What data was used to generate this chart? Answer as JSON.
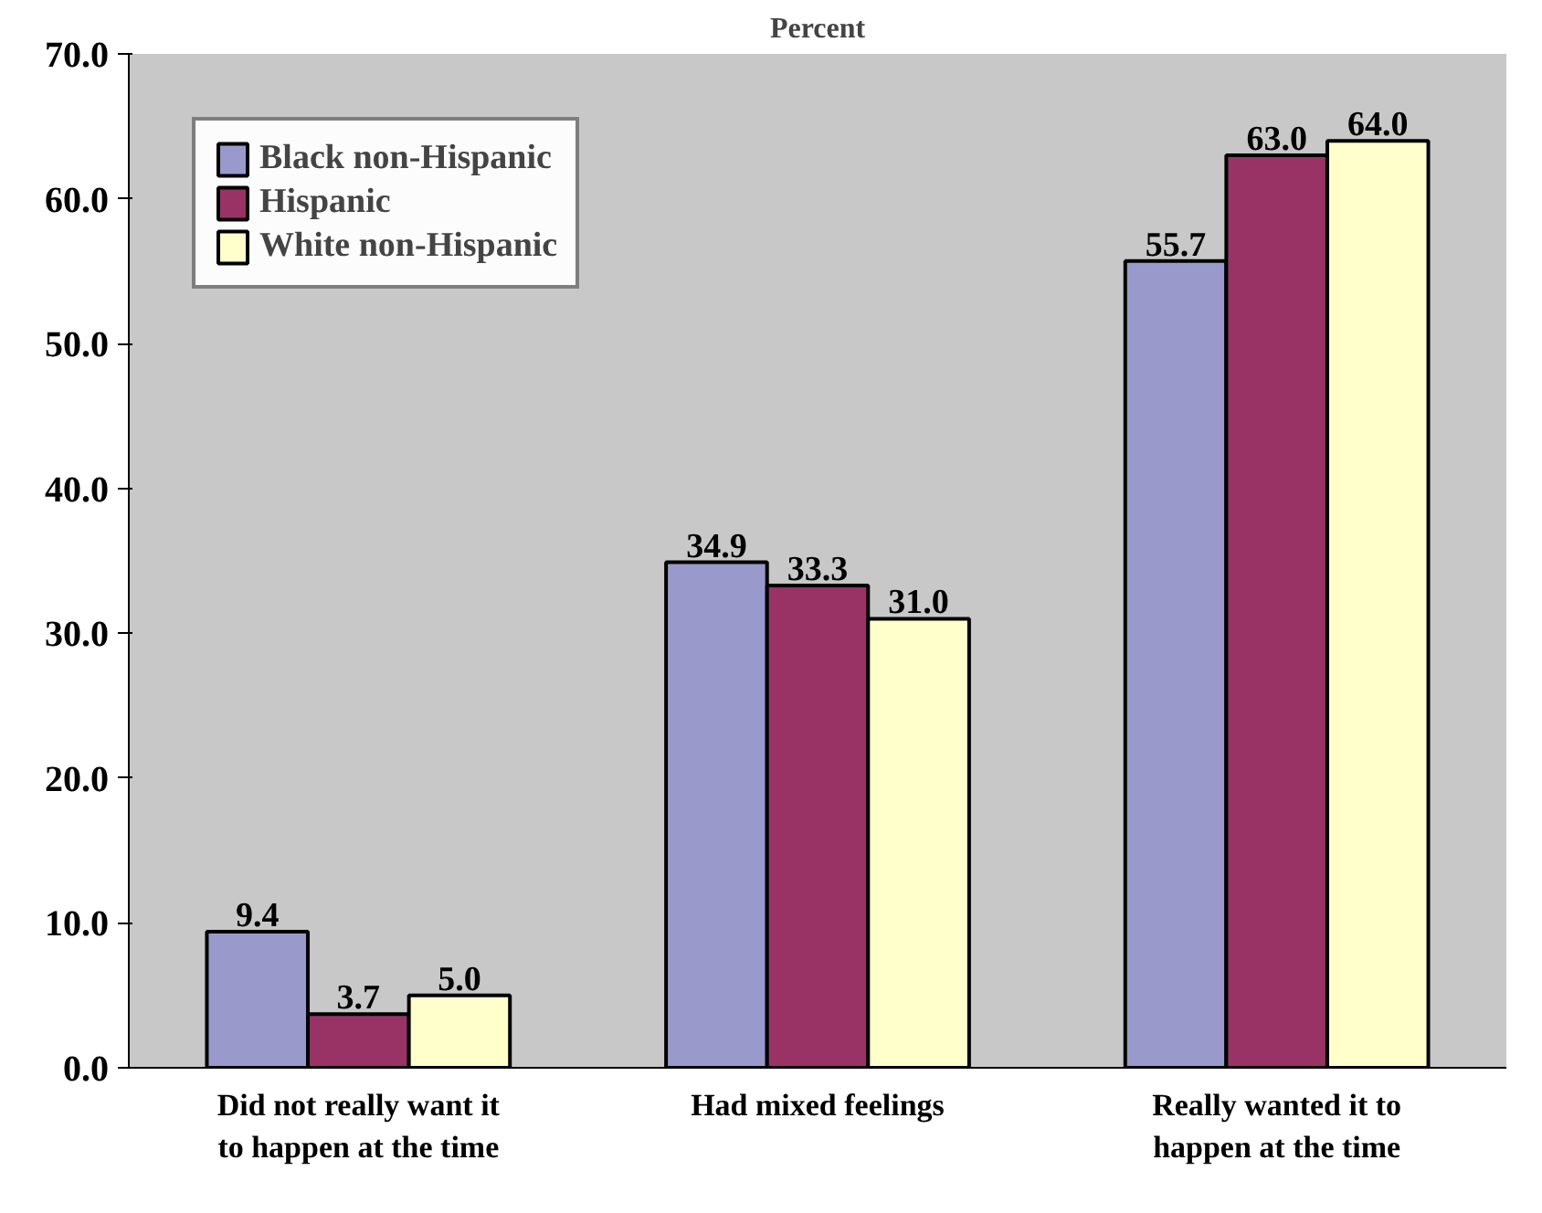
{
  "chart_data": {
    "type": "bar",
    "ylabel": "Percent",
    "categories": [
      "Did not really want it to happen at the time",
      "Had mixed feelings",
      "Really wanted it to happen at the time"
    ],
    "series": [
      {
        "name": "Black non-Hispanic",
        "color": "#9999cc",
        "values": [
          9.4,
          34.9,
          55.7
        ],
        "value_labels": [
          "9.4",
          "34.9",
          "55.7"
        ]
      },
      {
        "name": "Hispanic",
        "color": "#993366",
        "values": [
          3.7,
          33.3,
          63.0
        ],
        "value_labels": [
          "3.7",
          "33.3",
          "63.0"
        ]
      },
      {
        "name": "White non-Hispanic",
        "color": "#ffffcc",
        "values": [
          5.0,
          31.0,
          64.0
        ],
        "value_labels": [
          "5.0",
          "31.0",
          "64.0"
        ]
      }
    ],
    "ylim": [
      0,
      70
    ],
    "yticks": [
      {
        "value": 0,
        "label": "0.0"
      },
      {
        "value": 10,
        "label": "10.0"
      },
      {
        "value": 20,
        "label": "20.0"
      },
      {
        "value": 30,
        "label": "30.0"
      },
      {
        "value": 40,
        "label": "40.0"
      },
      {
        "value": 50,
        "label": "50.0"
      },
      {
        "value": 60,
        "label": "60.0"
      },
      {
        "value": 70,
        "label": "70.0"
      }
    ],
    "grid": false,
    "legend": "top left"
  }
}
